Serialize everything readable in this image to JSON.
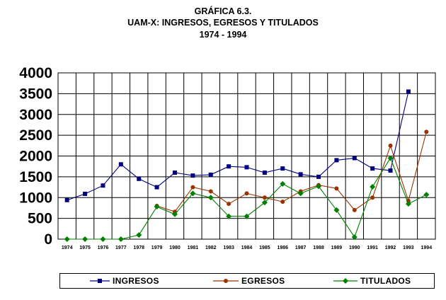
{
  "header": {
    "line1": "GRÁFICA 6.3.",
    "line2": "UAM-X: INGRESOS, EGRESOS Y TITULADOS",
    "line3": "1974 - 1994"
  },
  "chart_data": {
    "type": "line",
    "title": "GRÁFICA 6.3. UAM-X: INGRESOS, EGRESOS Y TITULADOS 1974 - 1994",
    "x": [
      "1974",
      "1975",
      "1976",
      "1977",
      "1978",
      "1979",
      "1980",
      "1981",
      "1982",
      "1983",
      "1984",
      "1985",
      "1986",
      "1987",
      "1988",
      "1989",
      "1990",
      "1991",
      "1992",
      "1993",
      "1994"
    ],
    "ylim": [
      0,
      4000
    ],
    "yticks": [
      0,
      500,
      1000,
      1500,
      2000,
      2500,
      3000,
      3500,
      4000
    ],
    "grid": true,
    "legend_position": "bottom",
    "series": [
      {
        "name": "INGRESOS",
        "color": "#000080",
        "marker": "square",
        "values": [
          940,
          1090,
          1290,
          1800,
          1450,
          1250,
          1600,
          1530,
          1550,
          1750,
          1730,
          1600,
          1700,
          1560,
          1500,
          1900,
          1950,
          1700,
          1650,
          3550,
          null
        ]
      },
      {
        "name": "EGRESOS",
        "color": "#993300",
        "marker": "circle",
        "values": [
          null,
          null,
          null,
          null,
          null,
          800,
          660,
          1250,
          1150,
          850,
          1100,
          1000,
          900,
          1150,
          1300,
          1220,
          700,
          1000,
          2250,
          920,
          2580
        ]
      },
      {
        "name": "TITULADOS",
        "color": "#008000",
        "marker": "diamond",
        "values": [
          0,
          0,
          0,
          0,
          100,
          780,
          600,
          1100,
          1000,
          550,
          550,
          880,
          1330,
          1100,
          1270,
          700,
          50,
          1260,
          1950,
          850,
          1070
        ]
      }
    ]
  }
}
